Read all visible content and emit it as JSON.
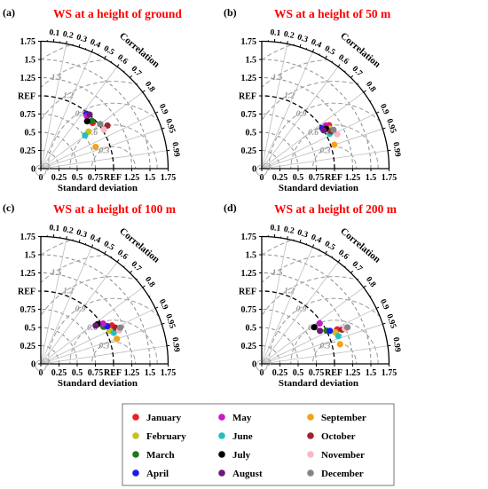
{
  "chart_data": {
    "type": "taylor",
    "panels": [
      {
        "label": "(a)",
        "title": "WS at a height of ground",
        "points": [
          {
            "month": "January",
            "r": 0.75,
            "std": 0.95
          },
          {
            "month": "February",
            "r": 0.79,
            "std": 0.83
          },
          {
            "month": "March",
            "r": 0.73,
            "std": 0.96
          },
          {
            "month": "April",
            "r": 0.64,
            "std": 0.98
          },
          {
            "month": "May",
            "r": 0.66,
            "std": 0.96
          },
          {
            "month": "June",
            "r": 0.8,
            "std": 0.76
          },
          {
            "month": "July",
            "r": 0.7,
            "std": 0.91
          },
          {
            "month": "August",
            "r": 0.67,
            "std": 1.0
          },
          {
            "month": "September",
            "r": 0.93,
            "std": 0.81
          },
          {
            "month": "October",
            "r": 0.84,
            "std": 1.09
          },
          {
            "month": "November",
            "r": 0.85,
            "std": 1.02
          },
          {
            "month": "December",
            "r": 0.8,
            "std": 1.02
          }
        ]
      },
      {
        "label": "(b)",
        "title": "WS at a height of 50 m",
        "points": [
          {
            "month": "January",
            "r": 0.84,
            "std": 1.1
          },
          {
            "month": "February",
            "r": 0.86,
            "std": 1.08
          },
          {
            "month": "March",
            "r": 0.85,
            "std": 1.02
          },
          {
            "month": "April",
            "r": 0.83,
            "std": 1.0
          },
          {
            "month": "May",
            "r": 0.83,
            "std": 1.06
          },
          {
            "month": "June",
            "r": 0.89,
            "std": 1.05
          },
          {
            "month": "July",
            "r": 0.85,
            "std": 1.04
          },
          {
            "month": "August",
            "r": 0.85,
            "std": 1.0
          },
          {
            "month": "September",
            "r": 0.95,
            "std": 1.05
          },
          {
            "month": "October",
            "r": 0.88,
            "std": 1.08
          },
          {
            "month": "November",
            "r": 0.91,
            "std": 1.14
          },
          {
            "month": "December",
            "r": 0.88,
            "std": 1.12
          }
        ]
      },
      {
        "label": "(c)",
        "title": "WS at a height of 100 m",
        "points": [
          {
            "month": "January",
            "r": 0.88,
            "std": 1.11
          },
          {
            "month": "February",
            "r": 0.9,
            "std": 1.05
          },
          {
            "month": "March",
            "r": 0.86,
            "std": 1.0
          },
          {
            "month": "April",
            "r": 0.87,
            "std": 1.05
          },
          {
            "month": "May",
            "r": 0.84,
            "std": 1.02
          },
          {
            "month": "June",
            "r": 0.92,
            "std": 1.09
          },
          {
            "month": "July",
            "r": 0.82,
            "std": 0.95
          },
          {
            "month": "August",
            "r": 0.82,
            "std": 0.92
          },
          {
            "month": "September",
            "r": 0.95,
            "std": 1.1
          },
          {
            "month": "October",
            "r": 0.9,
            "std": 1.14
          },
          {
            "month": "November",
            "r": 0.92,
            "std": 1.17
          },
          {
            "month": "December",
            "r": 0.91,
            "std": 1.2
          }
        ]
      },
      {
        "label": "(d)",
        "title": "WS at a height of 200 m",
        "points": [
          {
            "month": "January",
            "r": 0.91,
            "std": 1.14
          },
          {
            "month": "February",
            "r": 0.92,
            "std": 1.1
          },
          {
            "month": "March",
            "r": 0.89,
            "std": 1.0
          },
          {
            "month": "April",
            "r": 0.9,
            "std": 1.04
          },
          {
            "month": "May",
            "r": 0.82,
            "std": 0.97
          },
          {
            "month": "June",
            "r": 0.94,
            "std": 1.12
          },
          {
            "month": "July",
            "r": 0.82,
            "std": 0.88
          },
          {
            "month": "August",
            "r": 0.87,
            "std": 0.92
          },
          {
            "month": "September",
            "r": 0.97,
            "std": 1.11
          },
          {
            "month": "October",
            "r": 0.92,
            "std": 1.2
          },
          {
            "month": "November",
            "r": 0.92,
            "std": 1.24
          },
          {
            "month": "December",
            "r": 0.92,
            "std": 1.28
          }
        ]
      }
    ],
    "std_ticks": [
      "0",
      "0.25",
      "0.5",
      "0.75",
      "REF",
      "1.25",
      "1.5",
      "1.75"
    ],
    "std_tick_values": [
      0,
      0.25,
      0.5,
      0.75,
      1.0,
      1.25,
      1.5,
      1.75
    ],
    "std_max": 1.75,
    "std_arcs": [
      0.25,
      0.5,
      0.75,
      1.25,
      1.5,
      1.75
    ],
    "ref_std": 1.0,
    "ref_label": "REF",
    "corr_ticks": [
      0.1,
      0.2,
      0.3,
      0.4,
      0.5,
      0.6,
      0.7,
      0.8,
      0.9,
      0.95,
      0.99
    ],
    "corr_tick_labels": [
      "0.1",
      "0.2",
      "0.3",
      "0.4",
      "0.5",
      "0.6",
      "0.7",
      "0.8",
      "0.9",
      "0.95",
      "0.99"
    ],
    "corr_spokes": [
      0.2,
      0.4,
      0.6,
      0.8,
      0.9,
      0.95,
      0.99
    ],
    "rms_labels": [
      {
        "value": 0.3,
        "label": "0.3"
      },
      {
        "value": 0.6,
        "label": "0.6"
      },
      {
        "value": 0.9,
        "label": "0.9"
      },
      {
        "value": 1.2,
        "label": "1.2"
      },
      {
        "value": 1.5,
        "label": "1.5"
      },
      {
        "value": 1.8,
        "label": "1.8"
      }
    ],
    "corr_axis_label": "Correlation",
    "xlabel": "Standard deviation",
    "legend": [
      {
        "name": "January",
        "color": "#e8202a"
      },
      {
        "name": "February",
        "color": "#c8c21a"
      },
      {
        "name": "March",
        "color": "#1a7a1a"
      },
      {
        "name": "April",
        "color": "#1a1ae8"
      },
      {
        "name": "May",
        "color": "#c81ac8"
      },
      {
        "name": "June",
        "color": "#22c0c0"
      },
      {
        "name": "July",
        "color": "#000000"
      },
      {
        "name": "August",
        "color": "#6a1a78"
      },
      {
        "name": "September",
        "color": "#f5a21a"
      },
      {
        "name": "October",
        "color": "#a0222a"
      },
      {
        "name": "November",
        "color": "#f8b8c4"
      },
      {
        "name": "December",
        "color": "#858585"
      }
    ]
  }
}
